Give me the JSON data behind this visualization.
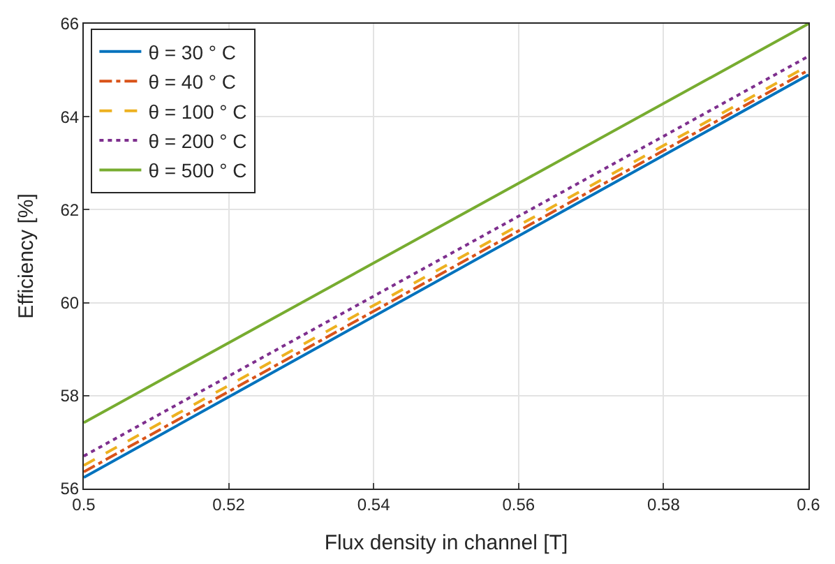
{
  "chart_data": {
    "type": "line",
    "xlabel": "Flux density in channel [T]",
    "ylabel": "Efficiency [%]",
    "x": [
      0.5,
      0.6
    ],
    "series": [
      {
        "name": "θ = 30 ° C",
        "color": "#0072bd",
        "line_style": "solid",
        "values": [
          56.24,
          64.9
        ]
      },
      {
        "name": "θ = 40 ° C",
        "color": "#d95319",
        "line_style": "dashdot",
        "values": [
          56.36,
          65.0
        ]
      },
      {
        "name": "θ = 100 ° C",
        "color": "#edb120",
        "line_style": "dashed",
        "values": [
          56.5,
          65.1
        ]
      },
      {
        "name": "θ = 200 ° C",
        "color": "#7e2f8e",
        "line_style": "dotted",
        "values": [
          56.7,
          65.3
        ]
      },
      {
        "name": "θ = 500 ° C",
        "color": "#77ac30",
        "line_style": "solid",
        "values": [
          57.42,
          66.0
        ]
      }
    ],
    "xlim": [
      0.5,
      0.6
    ],
    "xticks": [
      0.5,
      0.52,
      0.54,
      0.56,
      0.58,
      0.6
    ],
    "ylim": [
      56,
      66
    ],
    "yticks": [
      56,
      58,
      60,
      62,
      64,
      66
    ],
    "grid": true,
    "legend": "top left",
    "marker": "none"
  }
}
